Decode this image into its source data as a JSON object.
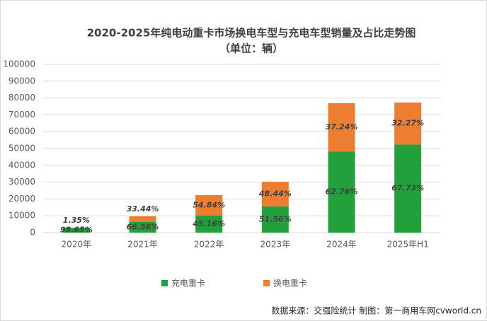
{
  "chart_data": {
    "type": "stacked_bar",
    "title": "2020-2025年纯电动重卡市场换电车型与充电车型销量及占比走势图",
    "subtitle": "（单位：辆）",
    "source": "数据来源：交强险统计 制图：第一商用车网cvworld.cn",
    "categories": [
      "2020年",
      "2021年",
      "2022年",
      "2023年",
      "2024年",
      "2025年H1"
    ],
    "series": [
      {
        "name": "充电重卡",
        "color": "#22a03c",
        "values": [
          2900,
          6450,
          10070,
          15600,
          48260,
          52360
        ],
        "share_labels": [
          "98.65%",
          "66.56%",
          "45.16%",
          "51.56%",
          "62.76%",
          "67.73%"
        ]
      },
      {
        "name": "换电重卡",
        "color": "#ed7d31",
        "values": [
          40,
          3240,
          12230,
          14650,
          28640,
          24940
        ],
        "share_labels": [
          "1.35%",
          "33.44%",
          "54.84%",
          "48.44%",
          "37.24%",
          "32.27%"
        ]
      }
    ],
    "ylim": [
      0,
      100000
    ],
    "yticks": [
      0,
      10000,
      20000,
      30000,
      40000,
      50000,
      60000,
      70000,
      80000,
      90000,
      100000
    ],
    "grid": true,
    "legend": "bottom"
  }
}
